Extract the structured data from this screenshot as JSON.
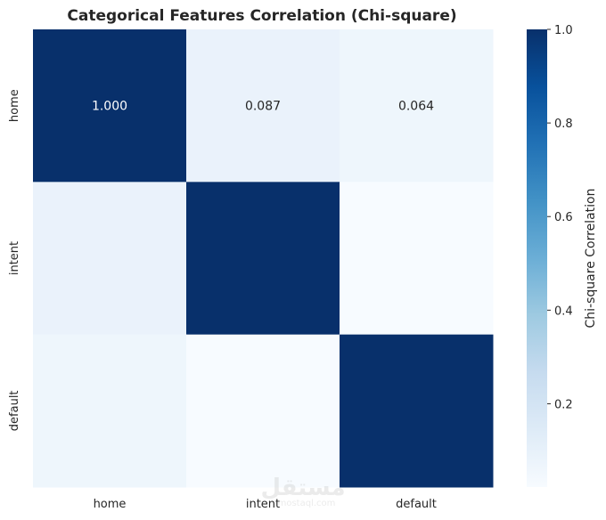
{
  "chart_data": {
    "type": "heatmap",
    "title": "Categorical Features Correlation (Chi-square)",
    "xlabel": "",
    "ylabel": "",
    "x_categories": [
      "home",
      "intent",
      "default"
    ],
    "y_categories": [
      "home",
      "intent",
      "default"
    ],
    "values": [
      [
        1.0,
        0.087,
        0.064
      ],
      [
        0.087,
        1.0,
        0.022
      ],
      [
        0.064,
        0.022,
        1.0
      ]
    ],
    "annotations": [
      [
        "1.000",
        "0.087",
        "0.064"
      ],
      [
        "",
        "",
        ""
      ],
      [
        "",
        "",
        ""
      ]
    ],
    "colormap": "Blues",
    "colorbar": {
      "label": "Chi-square Correlation",
      "range": [
        0.022,
        1.0
      ],
      "ticks": [
        0.2,
        0.4,
        0.6,
        0.8,
        1.0
      ],
      "tick_labels": [
        "0.2",
        "0.4",
        "0.6",
        "0.8",
        "1.0"
      ]
    },
    "colors": {
      "low": "#f7fbff",
      "high": "#08306b",
      "annotation_dark_text": "#262626",
      "annotation_light_text": "#ffffff"
    }
  },
  "watermark": {
    "text": "مستقل",
    "subtext": "mostaql.com"
  }
}
